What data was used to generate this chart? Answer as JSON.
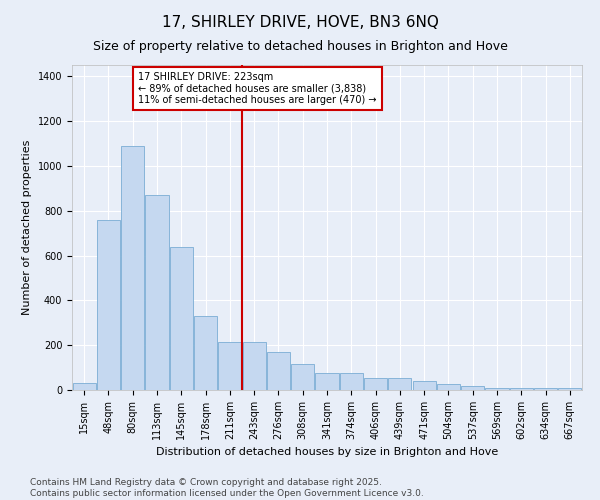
{
  "title": "17, SHIRLEY DRIVE, HOVE, BN3 6NQ",
  "subtitle": "Size of property relative to detached houses in Brighton and Hove",
  "xlabel": "Distribution of detached houses by size in Brighton and Hove",
  "ylabel": "Number of detached properties",
  "categories": [
    "15sqm",
    "48sqm",
    "80sqm",
    "113sqm",
    "145sqm",
    "178sqm",
    "211sqm",
    "243sqm",
    "276sqm",
    "308sqm",
    "341sqm",
    "374sqm",
    "406sqm",
    "439sqm",
    "471sqm",
    "504sqm",
    "537sqm",
    "569sqm",
    "602sqm",
    "634sqm",
    "667sqm"
  ],
  "values": [
    30,
    760,
    1090,
    870,
    640,
    330,
    215,
    215,
    170,
    115,
    75,
    75,
    55,
    55,
    40,
    25,
    18,
    10,
    8,
    10,
    8
  ],
  "bar_color": "#c5d8f0",
  "bar_edge_color": "#7aadd4",
  "vline_x_idx": 7,
  "vline_color": "#cc0000",
  "annotation_text": "17 SHIRLEY DRIVE: 223sqm\n← 89% of detached houses are smaller (3,838)\n11% of semi-detached houses are larger (470) →",
  "annotation_box_color": "#cc0000",
  "ylim": [
    0,
    1450
  ],
  "yticks": [
    0,
    200,
    400,
    600,
    800,
    1000,
    1200,
    1400
  ],
  "footer_line1": "Contains HM Land Registry data © Crown copyright and database right 2025.",
  "footer_line2": "Contains public sector information licensed under the Open Government Licence v3.0.",
  "bg_color": "#e8eef8",
  "plot_bg_color": "#e8eef8",
  "grid_color": "#ffffff",
  "title_fontsize": 11,
  "subtitle_fontsize": 9,
  "axis_label_fontsize": 8,
  "tick_fontsize": 7,
  "annotation_fontsize": 7,
  "footer_fontsize": 6.5
}
